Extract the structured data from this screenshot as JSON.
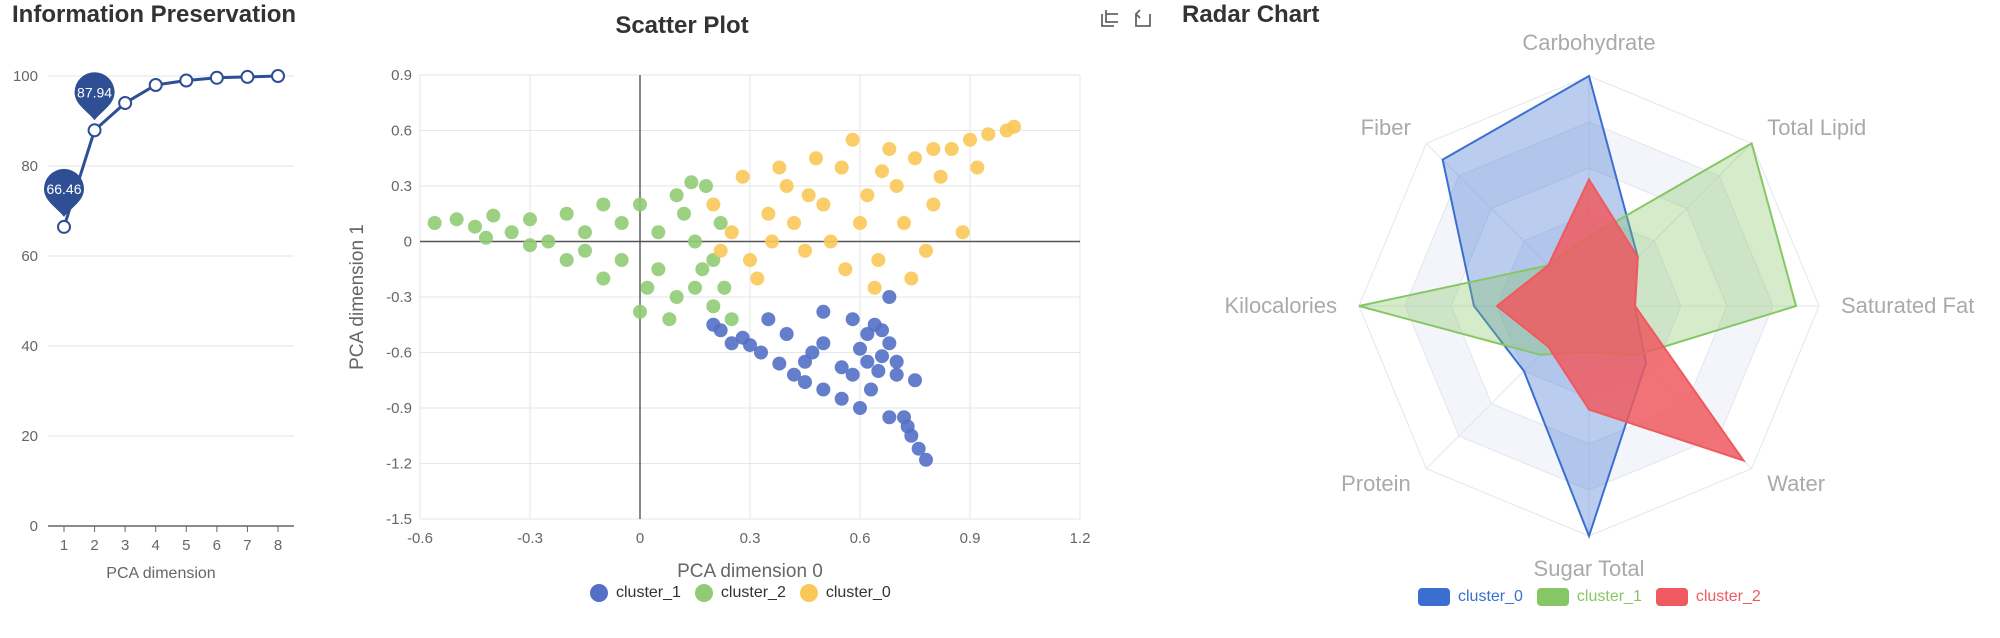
{
  "charts": {
    "info": {
      "title": "Information Preservation",
      "xlabel": "PCA dimension",
      "x_ticks": [
        "1",
        "2",
        "3",
        "4",
        "5",
        "6",
        "7",
        "8"
      ],
      "y_ticks": [
        "0",
        "20",
        "40",
        "60",
        "80",
        "100"
      ],
      "markers": [
        "66.46",
        "87.94"
      ]
    },
    "scatter": {
      "title": "Scatter Plot",
      "xlabel": "PCA dimension 0",
      "ylabel": "PCA dimension 1",
      "x_ticks": [
        "-0.6",
        "-0.3",
        "0",
        "0.3",
        "0.6",
        "0.9",
        "1.2"
      ],
      "y_ticks": [
        "0.9",
        "0.6",
        "0.3",
        "0",
        "-0.3",
        "-0.6",
        "-0.9",
        "-1.2",
        "-1.5"
      ],
      "legend": [
        "cluster_1",
        "cluster_2",
        "cluster_0"
      ]
    },
    "radar": {
      "title": "Radar Chart",
      "axes": [
        "Carbohydrate",
        "Total Lipid",
        "Saturated Fat",
        "Water",
        "Sugar Total",
        "Protein",
        "Kilocalories",
        "Fiber"
      ],
      "legend": [
        "cluster_0",
        "cluster_1",
        "cluster_2"
      ]
    }
  },
  "colors": {
    "line": "#2f4f95",
    "cluster_0_scatter": "#fac858",
    "cluster_1_scatter": "#5470c6",
    "cluster_2_scatter": "#91cc75",
    "radar_cluster_0": "#3a6fd1",
    "radar_cluster_1": "#86c765",
    "radar_cluster_2": "#ee5a5f"
  },
  "toolbox": {
    "icons": [
      "zoom-icon",
      "zoom-reset-icon"
    ]
  },
  "chart_data": [
    {
      "type": "line",
      "title": "Information Preservation",
      "xlabel": "PCA dimension",
      "ylabel": "",
      "x": [
        1,
        2,
        3,
        4,
        5,
        6,
        7,
        8
      ],
      "values": [
        66.46,
        87.94,
        94.0,
        98.0,
        99.0,
        99.6,
        99.8,
        100.0
      ],
      "ylim": [
        0,
        100
      ],
      "markers": [
        {
          "x": 1,
          "label": "66.46"
        },
        {
          "x": 2,
          "label": "87.94"
        }
      ],
      "grid": true
    },
    {
      "type": "scatter",
      "title": "Scatter Plot",
      "xlabel": "PCA dimension 0",
      "ylabel": "PCA dimension 1",
      "xlim": [
        -0.6,
        1.2
      ],
      "ylim": [
        -1.5,
        0.9
      ],
      "legend": "bottom-center",
      "series": [
        {
          "name": "cluster_1",
          "points": [
            [
              0.22,
              -0.48
            ],
            [
              0.28,
              -0.52
            ],
            [
              0.3,
              -0.56
            ],
            [
              0.33,
              -0.6
            ],
            [
              0.38,
              -0.66
            ],
            [
              0.42,
              -0.72
            ],
            [
              0.45,
              -0.76
            ],
            [
              0.5,
              -0.8
            ],
            [
              0.55,
              -0.85
            ],
            [
              0.6,
              -0.9
            ],
            [
              0.62,
              -0.5
            ],
            [
              0.6,
              -0.58
            ],
            [
              0.66,
              -0.62
            ],
            [
              0.64,
              -0.45
            ],
            [
              0.68,
              -0.55
            ],
            [
              0.7,
              -0.65
            ],
            [
              0.58,
              -0.42
            ],
            [
              0.65,
              -0.7
            ],
            [
              0.72,
              -0.95
            ],
            [
              0.74,
              -1.05
            ],
            [
              0.76,
              -1.12
            ],
            [
              0.78,
              -1.18
            ],
            [
              0.73,
              -1.0
            ],
            [
              0.68,
              -0.95
            ],
            [
              0.55,
              -0.68
            ],
            [
              0.45,
              -0.65
            ],
            [
              0.35,
              -0.42
            ],
            [
              0.25,
              -0.55
            ],
            [
              0.4,
              -0.5
            ],
            [
              0.5,
              -0.55
            ],
            [
              0.63,
              -0.8
            ],
            [
              0.7,
              -0.72
            ],
            [
              0.75,
              -0.75
            ],
            [
              0.68,
              -0.3
            ],
            [
              0.5,
              -0.38
            ],
            [
              0.62,
              -0.65
            ],
            [
              0.58,
              -0.72
            ],
            [
              0.2,
              -0.45
            ],
            [
              0.47,
              -0.6
            ],
            [
              0.66,
              -0.48
            ]
          ]
        },
        {
          "name": "cluster_2",
          "points": [
            [
              -0.56,
              0.1
            ],
            [
              -0.5,
              0.12
            ],
            [
              -0.45,
              0.08
            ],
            [
              -0.4,
              0.14
            ],
            [
              -0.35,
              0.05
            ],
            [
              -0.3,
              0.12
            ],
            [
              -0.25,
              0.0
            ],
            [
              -0.2,
              0.15
            ],
            [
              -0.15,
              -0.05
            ],
            [
              -0.1,
              0.2
            ],
            [
              -0.05,
              -0.1
            ],
            [
              0.0,
              0.2
            ],
            [
              0.05,
              -0.15
            ],
            [
              0.1,
              0.25
            ],
            [
              0.15,
              -0.25
            ],
            [
              0.18,
              0.3
            ],
            [
              0.2,
              -0.35
            ],
            [
              0.22,
              0.1
            ],
            [
              0.1,
              -0.3
            ],
            [
              0.0,
              -0.38
            ],
            [
              -0.1,
              -0.2
            ],
            [
              -0.2,
              -0.1
            ],
            [
              0.15,
              0.0
            ],
            [
              0.05,
              0.05
            ],
            [
              -0.05,
              0.1
            ],
            [
              0.12,
              0.15
            ],
            [
              0.2,
              -0.1
            ],
            [
              0.25,
              -0.42
            ],
            [
              0.08,
              -0.42
            ],
            [
              -0.3,
              -0.02
            ],
            [
              -0.42,
              0.02
            ],
            [
              0.23,
              -0.25
            ],
            [
              0.17,
              -0.15
            ],
            [
              -0.15,
              0.05
            ],
            [
              0.02,
              -0.25
            ],
            [
              0.14,
              0.32
            ]
          ]
        },
        {
          "name": "cluster_0",
          "points": [
            [
              0.2,
              0.2
            ],
            [
              0.25,
              0.05
            ],
            [
              0.3,
              -0.1
            ],
            [
              0.35,
              0.15
            ],
            [
              0.4,
              0.3
            ],
            [
              0.45,
              -0.05
            ],
            [
              0.5,
              0.2
            ],
            [
              0.55,
              0.4
            ],
            [
              0.6,
              0.1
            ],
            [
              0.65,
              -0.1
            ],
            [
              0.7,
              0.3
            ],
            [
              0.75,
              0.45
            ],
            [
              0.8,
              0.2
            ],
            [
              0.85,
              0.5
            ],
            [
              0.9,
              0.55
            ],
            [
              0.95,
              0.58
            ],
            [
              1.0,
              0.6
            ],
            [
              1.02,
              0.62
            ],
            [
              0.88,
              0.05
            ],
            [
              0.78,
              -0.05
            ],
            [
              0.68,
              0.5
            ],
            [
              0.58,
              0.55
            ],
            [
              0.48,
              0.45
            ],
            [
              0.38,
              0.4
            ],
            [
              0.28,
              0.35
            ],
            [
              0.22,
              -0.05
            ],
            [
              0.32,
              -0.2
            ],
            [
              0.42,
              0.1
            ],
            [
              0.52,
              0.0
            ],
            [
              0.62,
              0.25
            ],
            [
              0.72,
              0.1
            ],
            [
              0.82,
              0.35
            ],
            [
              0.92,
              0.4
            ],
            [
              0.74,
              -0.2
            ],
            [
              0.64,
              -0.25
            ],
            [
              0.56,
              -0.15
            ],
            [
              0.46,
              0.25
            ],
            [
              0.36,
              0.0
            ],
            [
              0.8,
              0.5
            ],
            [
              0.66,
              0.38
            ]
          ]
        }
      ]
    },
    {
      "type": "radar",
      "title": "Radar Chart",
      "axes": [
        "Carbohydrate",
        "Total Lipid",
        "Saturated Fat",
        "Water",
        "Sugar Total",
        "Protein",
        "Kilocalories",
        "Fiber"
      ],
      "legend": "bottom-center",
      "series": [
        {
          "name": "cluster_0",
          "values": [
            1.0,
            0.3,
            0.2,
            0.35,
            1.0,
            0.4,
            0.5,
            0.9
          ]
        },
        {
          "name": "cluster_1",
          "values": [
            0.3,
            1.0,
            0.9,
            0.3,
            0.2,
            0.3,
            1.0,
            0.25
          ]
        },
        {
          "name": "cluster_2",
          "values": [
            0.55,
            0.3,
            0.2,
            0.95,
            0.45,
            0.25,
            0.4,
            0.25
          ]
        }
      ]
    }
  ]
}
